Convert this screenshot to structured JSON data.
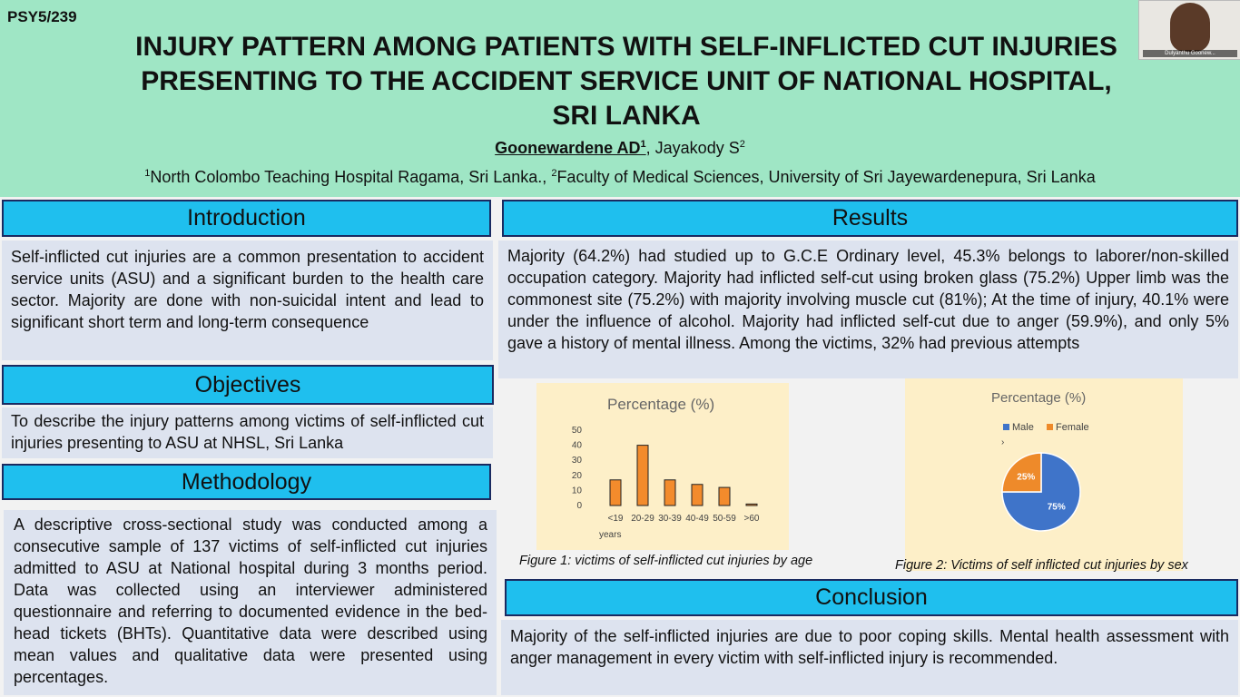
{
  "poster_id": "PSY5/239",
  "title_lines": [
    "INJURY PATTERN AMONG PATIENTS WITH SELF-INFLICTED CUT INJURIES",
    "PRESENTING TO THE ACCIDENT SERVICE UNIT OF NATIONAL HOSPITAL,",
    "SRI LANKA"
  ],
  "authors": {
    "main": "Goonewardene AD",
    "main_sup": "1",
    "separator": ", ",
    "second": "Jayakody S",
    "second_sup": "2"
  },
  "affiliations": {
    "sup1": "1",
    "text1": "North Colombo Teaching Hospital Ragama, Sri Lanka., ",
    "sup2": "2",
    "text2": "Faculty of Medical Sciences, University of Sri Jayewardenepura, Sri Lanka"
  },
  "video": {
    "participant_name": "Dulyanthu Goonew..."
  },
  "introduction": {
    "heading": "Introduction",
    "text": "Self-inflicted cut injuries are a common presentation to accident service units (ASU) and a significant burden to the health care sector. Majority are done with non-suicidal intent and lead to significant short term and long-term consequence"
  },
  "objectives": {
    "heading": "Objectives",
    "text": "To  describe the injury patterns among victims of self-inflicted cut injuries presenting to ASU at NHSL, Sri Lanka"
  },
  "methodology": {
    "heading": "Methodology",
    "text": "A descriptive cross-sectional study was conducted among a consecutive sample of 137 victims of self-inflicted cut injuries admitted to ASU at National hospital during 3 months period. Data was collected using an interviewer administered questionnaire and referring to documented evidence in the bed-head tickets (BHTs). Quantitative data were described using mean values and qualitative data were presented using percentages."
  },
  "results": {
    "heading": "Results",
    "text": "Majority (64.2%) had studied up to G.C.E Ordinary level, 45.3% belongs to laborer/non-skilled occupation category. Majority had inflicted self-cut using broken glass (75.2%) Upper limb was the commonest site (75.2%) with majority involving muscle cut (81%); At the time of injury, 40.1% were under the influence of alcohol. Majority had inflicted self-cut due to anger (59.9%), and only 5% gave a history of mental illness. Among the victims, 32% had previous attempts"
  },
  "conclusion": {
    "heading": "Conclusion",
    "text": "Majority of the self-inflicted injuries are due to poor coping skills. Mental health assessment with anger management in every victim with self-inflicted injury is recommended."
  },
  "figure1_caption": "Figure 1: victims of self-inflicted cut injuries  by age",
  "figure2_caption": "Figure 2: Victims of self inflicted cut injuries by sex",
  "colors": {
    "header_bg": "#9fe6c5",
    "section_head": "#1fbfee",
    "section_border": "#1a2a60",
    "box_bg": "#dde3ef",
    "chart_bg": "#fdefc8",
    "bar_fill": "#f38b2c",
    "male": "#3f74c9",
    "female": "#ee8a2a"
  },
  "chart_data": [
    {
      "type": "bar",
      "title": "Percentage (%)",
      "categories": [
        "<19",
        "20-29",
        "30-39",
        "40-49",
        "50-59",
        ">60"
      ],
      "x_unit_label": "years",
      "values": [
        17,
        40,
        17,
        14,
        12,
        1
      ],
      "ylim": [
        0,
        50
      ],
      "yticks": [
        0,
        10,
        20,
        30,
        40,
        50
      ],
      "grid": false
    },
    {
      "type": "pie",
      "title": "Percentage (%)",
      "labels": [
        "Male",
        "Female"
      ],
      "values": [
        75,
        25
      ],
      "data_labels": [
        "75%",
        "25%"
      ],
      "legend_placement": "top-left",
      "legend_marker": "›"
    }
  ]
}
